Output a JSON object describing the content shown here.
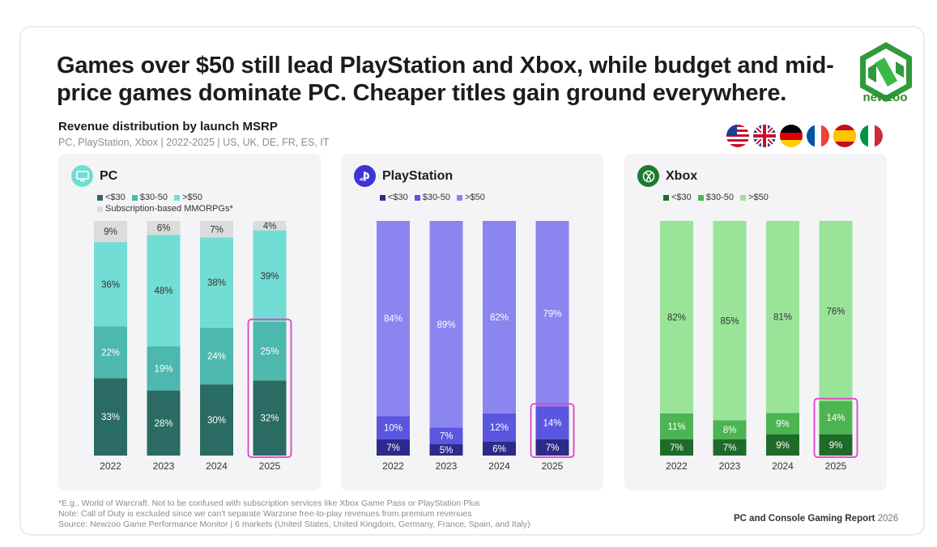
{
  "headline": "Games over $50 still lead PlayStation and Xbox, while budget and mid-price games dominate PC. Cheaper titles gain ground everywhere.",
  "brand": "newzoo",
  "subtitle": "Revenue distribution by launch MSRP",
  "scope": "PC, PlayStation, Xbox | 2022-2025 | US, UK, DE, FR, ES, IT",
  "flags": [
    "us-flag-icon",
    "uk-flag-icon",
    "de-flag-icon",
    "fr-flag-icon",
    "es-flag-icon",
    "it-flag-icon"
  ],
  "footnotes": [
    "*E.g., World of Warcraft. Not to be confused with subscription services like Xbox Game Pass or PlayStation Plus",
    "Note: Call of Duty is excluded since we can't separate Warzone free-to-play revenues from premium revenues",
    "Source: Newzoo Game Performance Monitor | 6 markets (United States, United Kingdom, Germany, France, Spain, and Italy)"
  ],
  "report": {
    "name": "PC and Console Gaming Report",
    "year": "2026"
  },
  "chart_data": [
    {
      "type": "bar",
      "stacked": true,
      "title": "PC",
      "icon": "monitor-icon",
      "accent": "#6fded3",
      "highlight": "2025",
      "categories": [
        "2022",
        "2023",
        "2024",
        "2025"
      ],
      "ylim": [
        0,
        100
      ],
      "series": [
        {
          "name": "<$30",
          "color": "#2a6b63",
          "label_color": "#ffffff",
          "values": [
            33,
            28,
            30,
            32
          ]
        },
        {
          "name": "$30-50",
          "color": "#4db8ad",
          "label_color": "#ffffff",
          "values": [
            22,
            19,
            24,
            25
          ]
        },
        {
          "name": ">$50",
          "color": "#72ddd4",
          "label_color": "#333333",
          "values": [
            36,
            48,
            38,
            39
          ]
        },
        {
          "name": "Subscription-based MMORPGs*",
          "color": "#dcdcdc",
          "label_color": "#333333",
          "values": [
            9,
            6,
            7,
            4
          ]
        }
      ]
    },
    {
      "type": "bar",
      "stacked": true,
      "title": "PlayStation",
      "icon": "playstation-icon",
      "accent": "#3d34d8",
      "highlight": "2025",
      "categories": [
        "2022",
        "2023",
        "2024",
        "2025"
      ],
      "ylim": [
        0,
        100
      ],
      "series": [
        {
          "name": "<$30",
          "color": "#2d2a8a",
          "label_color": "#ffffff",
          "values": [
            7,
            5,
            6,
            7
          ]
        },
        {
          "name": "$30-50",
          "color": "#5a56e0",
          "label_color": "#ffffff",
          "values": [
            10,
            7,
            12,
            14
          ]
        },
        {
          "name": ">$50",
          "color": "#8b85f0",
          "label_color": "#ffffff",
          "values": [
            84,
            89,
            82,
            79
          ]
        }
      ]
    },
    {
      "type": "bar",
      "stacked": true,
      "title": "Xbox",
      "icon": "xbox-icon",
      "accent": "#1e7a2e",
      "highlight": "2025",
      "categories": [
        "2022",
        "2023",
        "2024",
        "2025"
      ],
      "ylim": [
        0,
        100
      ],
      "series": [
        {
          "name": "<$30",
          "color": "#1f6b2a",
          "label_color": "#ffffff",
          "values": [
            7,
            7,
            9,
            9
          ]
        },
        {
          "name": "$30-50",
          "color": "#4cb552",
          "label_color": "#ffffff",
          "values": [
            11,
            8,
            9,
            14
          ]
        },
        {
          "name": ">$50",
          "color": "#9ae49a",
          "label_color": "#333333",
          "values": [
            82,
            85,
            81,
            76
          ]
        }
      ]
    }
  ]
}
